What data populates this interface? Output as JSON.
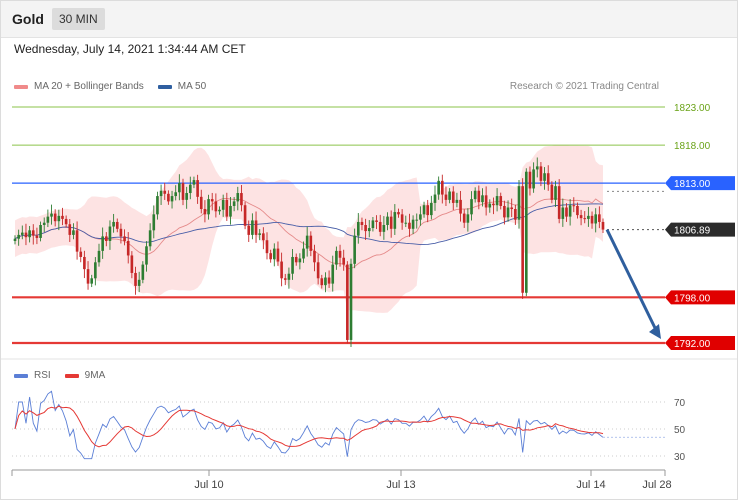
{
  "header": {
    "symbol": "Gold",
    "timeframe": "30 MIN"
  },
  "timestamp": "Wednesday, July 14, 2021 1:34:44 AM CET",
  "legend": {
    "ma20_label": "MA 20 + Bollinger Bands",
    "ma50_label": "MA 50",
    "credit": "Research © 2021 Trading Central",
    "rsi_label": "RSI",
    "ma9_label": "9MA"
  },
  "colors": {
    "up": "#2e7d32",
    "down": "#c62828",
    "band": "#fddede",
    "ma20": "#e58a8a",
    "ma50": "#4a5fa8",
    "resistance_green": "#8bc34a",
    "resistance_blue": "#2962ff",
    "support_red": "#e53935",
    "arrow": "#2f5f9e",
    "rsi": "#5b7fd6",
    "rsi_ma": "#e53935"
  },
  "chart_data": [
    {
      "type": "candlestick",
      "ylim": [
        1789,
        1827
      ],
      "x_ticks": [
        "Jul 10",
        "Jul 13",
        "Jul 14",
        "Jul 28"
      ],
      "levels": [
        {
          "value": 1823.0,
          "label": "1823.00",
          "style": "green-thin"
        },
        {
          "value": 1818.0,
          "label": "1818.00",
          "style": "green-thin"
        },
        {
          "value": 1813.0,
          "label": "1813.00",
          "style": "blue"
        },
        {
          "value": 1798.0,
          "label": "1798.00",
          "style": "red-thick"
        },
        {
          "value": 1792.0,
          "label": "1792.00",
          "style": "red-thick"
        }
      ],
      "current_price": {
        "value": 1806.89,
        "label": "1806.89"
      },
      "forecast_target": 1792.0,
      "closes": [
        1805.7,
        1806.2,
        1806.5,
        1805.9,
        1806.8,
        1806.1,
        1805.8,
        1807.5,
        1807.8,
        1808.6,
        1809.0,
        1808.0,
        1808.7,
        1808.3,
        1807.6,
        1806.2,
        1806.8,
        1804.0,
        1803.3,
        1801.7,
        1799.8,
        1800.5,
        1802.6,
        1804.1,
        1806.0,
        1805.4,
        1807.3,
        1807.9,
        1807.0,
        1806.0,
        1805.4,
        1803.5,
        1801.2,
        1799.5,
        1800.3,
        1802.3,
        1804.7,
        1806.8,
        1808.9,
        1811.3,
        1812.0,
        1811.6,
        1810.6,
        1811.3,
        1811.8,
        1813.0,
        1810.8,
        1811.7,
        1812.8,
        1813.4,
        1811.2,
        1809.6,
        1808.9,
        1810.9,
        1810.6,
        1809.3,
        1809.5,
        1810.8,
        1808.6,
        1810.0,
        1810.6,
        1811.7,
        1810.1,
        1807.4,
        1806.2,
        1808.1,
        1806.2,
        1806.4,
        1805.5,
        1803.8,
        1803.0,
        1804.4,
        1802.7,
        1800.5,
        1800.3,
        1801.1,
        1803.3,
        1802.6,
        1803.1,
        1804.4,
        1806.1,
        1804.1,
        1802.6,
        1800.5,
        1799.6,
        1800.6,
        1799.8,
        1802.3,
        1804.1,
        1803.2,
        1802.3,
        1792.4,
        1802.4,
        1806.1,
        1807.9,
        1807.5,
        1806.7,
        1807.1,
        1808.1,
        1807.9,
        1806.6,
        1807.5,
        1808.6,
        1807.0,
        1809.2,
        1808.9,
        1807.8,
        1807.8,
        1807.0,
        1808.2,
        1808.2,
        1808.9,
        1810.1,
        1808.8,
        1810.4,
        1811.5,
        1813.3,
        1811.5,
        1810.8,
        1811.9,
        1810.4,
        1810.8,
        1809.0,
        1807.8,
        1808.9,
        1810.9,
        1812.0,
        1810.5,
        1811.4,
        1809.8,
        1810.3,
        1810.1,
        1811.3,
        1810.0,
        1808.5,
        1809.8,
        1809.6,
        1808.2,
        1812.6,
        1798.6,
        1814.5,
        1812.3,
        1814.8,
        1815.2,
        1813.3,
        1814.3,
        1812.8,
        1810.8,
        1812.6,
        1808.3,
        1809.8,
        1808.6,
        1810.1,
        1810.0,
        1808.8,
        1808.4,
        1808.3,
        1808.7,
        1807.7,
        1808.9,
        1807.9,
        1806.9
      ],
      "rsi": {
        "levels": [
          30,
          50,
          70
        ]
      }
    }
  ]
}
